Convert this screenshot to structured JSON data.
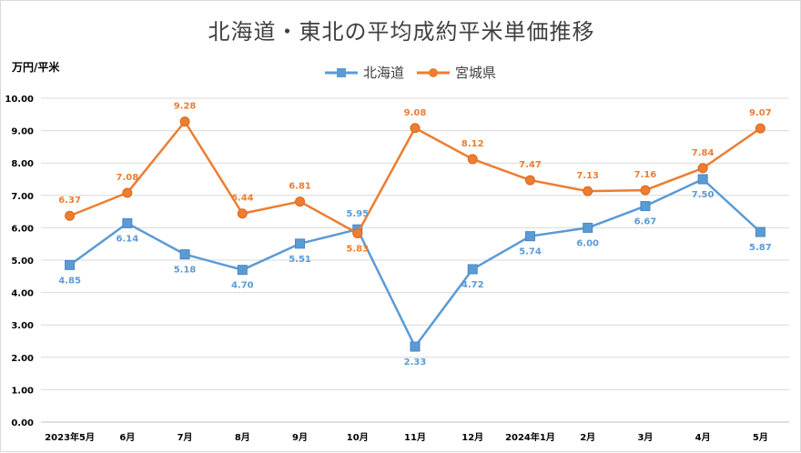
{
  "chart_data": {
    "type": "line",
    "title": "北海道・東北の平均成約平米単価推移",
    "ylabel": "万円/平米",
    "xlabel": "",
    "categories": [
      "2023年5月",
      "6月",
      "7月",
      "8月",
      "9月",
      "10月",
      "11月",
      "12月",
      "2024年1月",
      "2月",
      "3月",
      "4月",
      "5月"
    ],
    "ylim": [
      0,
      10
    ],
    "yticks": [
      "0.00",
      "1.00",
      "2.00",
      "3.00",
      "4.00",
      "5.00",
      "6.00",
      "7.00",
      "8.00",
      "9.00",
      "10.00"
    ],
    "grid": true,
    "legend_position": "top",
    "series": [
      {
        "name": "北海道",
        "color": "#5b9bd5",
        "marker": "square",
        "values": [
          4.85,
          6.14,
          5.18,
          4.7,
          5.51,
          5.95,
          2.33,
          4.72,
          5.74,
          6.0,
          6.67,
          7.5,
          5.87
        ],
        "labels": [
          "4.85",
          "6.14",
          "5.18",
          "4.70",
          "5.51",
          "5.95",
          "2.33",
          "4.72",
          "5.74",
          "6.00",
          "6.67",
          "7.50",
          "5.87"
        ]
      },
      {
        "name": "宮城県",
        "color": "#ed7d31",
        "marker": "circle",
        "values": [
          6.37,
          7.08,
          9.28,
          6.44,
          6.81,
          5.83,
          9.08,
          8.12,
          7.47,
          7.13,
          7.16,
          7.84,
          9.07
        ],
        "labels": [
          "6.37",
          "7.08",
          "9.28",
          "6.44",
          "6.81",
          "5.83",
          "9.08",
          "8.12",
          "7.47",
          "7.13",
          "7.16",
          "7.84",
          "9.07"
        ]
      }
    ]
  }
}
